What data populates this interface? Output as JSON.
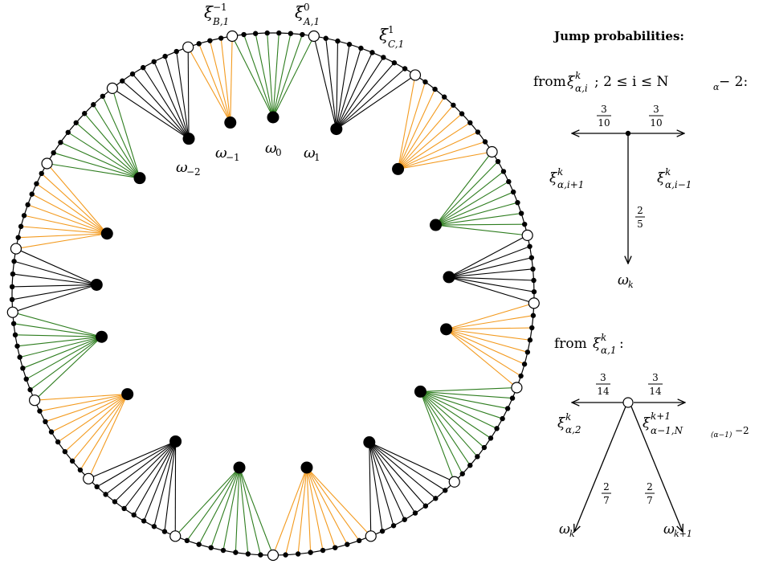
{
  "diagram": {
    "colors": {
      "green": "#2e7d1f",
      "orange": "#f39a1e",
      "black": "#000000"
    },
    "node_labels": {
      "xi_B_top": "ξ",
      "xi_B_sup": "−1",
      "xi_B_sub": "B,1",
      "xi_A_top": "ξ",
      "xi_A_sup": "0",
      "xi_A_sub": "A,1",
      "xi_C_top": "ξ",
      "xi_C_sup": "1",
      "xi_C_sub": "C,1",
      "omega": "ω",
      "omega_m2_sub": "−2",
      "omega_m1_sub": "−1",
      "omega_0_sub": "0",
      "omega_1_sub": "1"
    }
  },
  "legend": {
    "title": "Jump probabilities:",
    "case1": {
      "from_prefix": "from",
      "from_sym": "ξ",
      "from_sup": "k",
      "from_sub": "α,i",
      "condition": ";  2 ≤ i ≤ N",
      "cond_sub": "α",
      "cond_tail": " − 2:",
      "left_num": "3",
      "left_den": "10",
      "right_num": "3",
      "right_den": "10",
      "down_num": "2",
      "down_den": "5",
      "left_target_sub": "α,i+1",
      "right_target_sub": "α,i−1",
      "down_target": "ω",
      "down_target_sub": "k",
      "sup_k": "k"
    },
    "case2": {
      "from_prefix": "from",
      "from_sym": "ξ",
      "from_sup": "k",
      "from_sub": "α,1",
      "colon": ":",
      "left_num": "3",
      "left_den": "14",
      "right_num": "3",
      "right_den": "14",
      "downleft_num": "2",
      "downleft_den": "7",
      "downright_num": "2",
      "downright_den": "7",
      "left_target_sub": "α,2",
      "left_target_sup": "k",
      "right_target_sup": "k+1",
      "right_target_sub": "α−1,N",
      "right_target_subsub": "(α−1)",
      "right_target_tail": "−2",
      "down_left_target": "ω",
      "down_left_sub": "k",
      "down_right_target": "ω",
      "down_right_sub": "k+1"
    }
  }
}
